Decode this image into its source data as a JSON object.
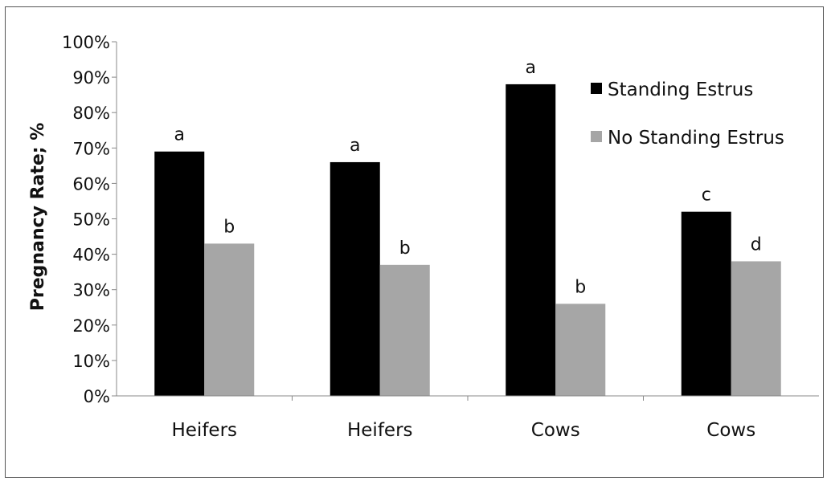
{
  "chart_data": {
    "type": "bar",
    "title": "",
    "xlabel": "",
    "ylabel": "Pregnancy Rate; %",
    "ylim": [
      0,
      100
    ],
    "yticks": [
      "0%",
      "10%",
      "20%",
      "30%",
      "40%",
      "50%",
      "60%",
      "70%",
      "80%",
      "90%",
      "100%"
    ],
    "grid": false,
    "legend_position": "top-right",
    "categories": [
      "Heifers",
      "Heifers",
      "Cows",
      "Cows"
    ],
    "series": [
      {
        "name": "Standing Estrus",
        "color": "#000000",
        "values": [
          69,
          66,
          88,
          52
        ],
        "letters": [
          "a",
          "a",
          "a",
          "c"
        ]
      },
      {
        "name": "No Standing Estrus",
        "color": "#a6a6a6",
        "values": [
          43,
          37,
          26,
          38
        ],
        "letters": [
          "b",
          "b",
          "b",
          "d"
        ]
      }
    ]
  }
}
